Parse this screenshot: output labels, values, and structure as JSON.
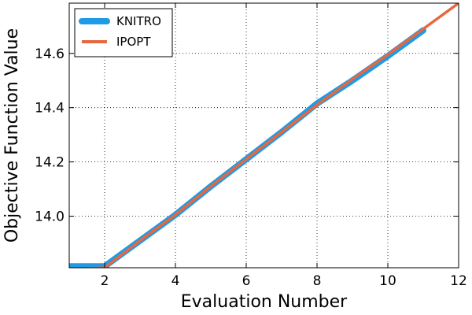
{
  "chart_data": {
    "type": "line",
    "xlabel": "Evaluation Number",
    "ylabel": "Objective Function Value",
    "xlim": [
      1,
      12
    ],
    "ylim": [
      13.81,
      14.785
    ],
    "x_ticks": [
      2,
      4,
      6,
      8,
      10,
      12
    ],
    "y_ticks": [
      14.0,
      14.2,
      14.4,
      14.6
    ],
    "y_tick_labels": [
      "14.0",
      "14.2",
      "14.4",
      "14.6"
    ],
    "grid": true,
    "legend_position": "top-left",
    "series": [
      {
        "name": "KNITRO",
        "color": "#1f9be6",
        "x": [
          1,
          2,
          3,
          4,
          5,
          6,
          7,
          8,
          9,
          10,
          11
        ],
        "y": [
          13.815,
          13.815,
          13.91,
          14.005,
          14.11,
          14.21,
          14.31,
          14.415,
          14.5,
          14.59,
          14.685
        ]
      },
      {
        "name": "IPOPT",
        "color": "#e5683f",
        "x": [
          1,
          2,
          3,
          4,
          5,
          6,
          7,
          8,
          9,
          10,
          11,
          12
        ],
        "y": [
          13.805,
          13.81,
          13.91,
          14.005,
          14.11,
          14.21,
          14.31,
          14.41,
          14.505,
          14.595,
          14.69,
          14.785
        ]
      }
    ]
  }
}
